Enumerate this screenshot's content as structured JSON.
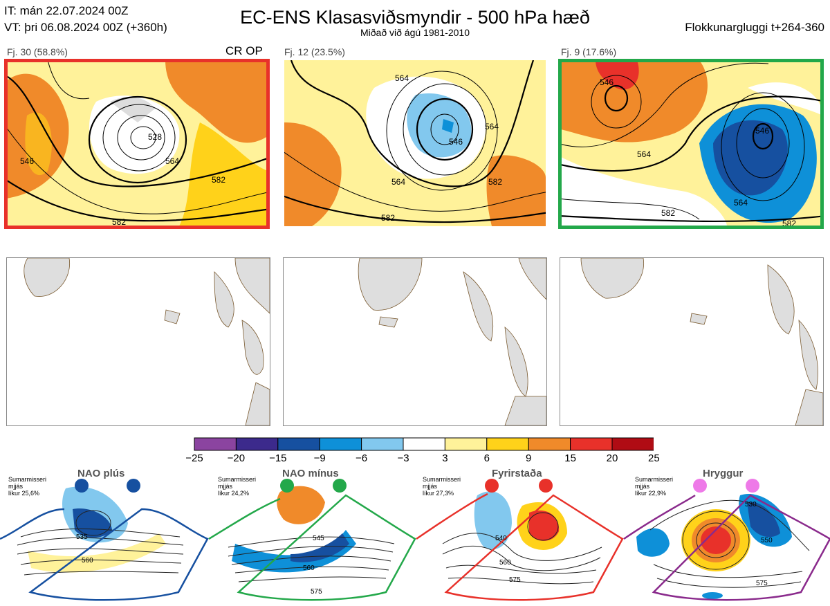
{
  "header": {
    "init": "IT: mán 22.07.2024 00Z",
    "valid": "VT: þri 06.08.2024 00Z  (+360h)",
    "title": "EC-ENS Klasasviðsmyndir - 500 hPa hæð",
    "subtitle": "Miðað við ágú 1981-2010",
    "window": "Flokkunargluggi t+264-360"
  },
  "clusters": [
    {
      "label": "Fj. 30 (58.8%)",
      "tag": "CR OP",
      "frame_color": "#e8312a",
      "contour_labels": [
        "546",
        "564",
        "582",
        "582",
        "528"
      ]
    },
    {
      "label": "Fj. 12 (23.5%)",
      "tag": "",
      "frame_color": "",
      "contour_labels": [
        "564",
        "564",
        "546",
        "564",
        "582",
        "582"
      ]
    },
    {
      "label": "Fj. 9 (17.6%)",
      "tag": "",
      "frame_color": "#23a84a",
      "contour_labels": [
        "546",
        "564",
        "546",
        "564",
        "582",
        "582"
      ]
    }
  ],
  "colorbar": {
    "ticks": [
      "−25",
      "−20",
      "−15",
      "−9",
      "−6",
      "−3",
      "3",
      "6",
      "9",
      "15",
      "20",
      "25"
    ],
    "colors": [
      "#8b44a0",
      "#3c2a8c",
      "#1650a0",
      "#0e90d8",
      "#82c8ee",
      "#ffffff",
      "#fff29a",
      "#ffd21a",
      "#f08a2a",
      "#e8312a",
      "#b00c14"
    ]
  },
  "regimes": [
    {
      "name": "NAO plús",
      "note": [
        "Sumarmisseri",
        "mjjás",
        "líkur 25,6%"
      ],
      "color": "#1650a0",
      "dot_color": "#1650a0",
      "contour_labels": [
        "535",
        "560"
      ]
    },
    {
      "name": "NAO mínus",
      "note": [
        "Sumarmisseri",
        "mjjás",
        "líkur 24,2%"
      ],
      "color": "#23a84a",
      "dot_color": "#23a84a",
      "contour_labels": [
        "545",
        "560",
        "575"
      ]
    },
    {
      "name": "Fyrirstaða",
      "note": [
        "Sumarmisseri",
        "mjjás",
        "líkur 27,3%"
      ],
      "color": "#e8312a",
      "dot_color": "#e8312a",
      "contour_labels": [
        "540",
        "560",
        "575"
      ]
    },
    {
      "name": "Hryggur",
      "note": [
        "Sumarmisseri",
        "mjjás",
        "líkur 22,9%"
      ],
      "color": "#8a2a8c",
      "dot_color": "#ee7ae8",
      "contour_labels": [
        "530",
        "550",
        "575"
      ]
    }
  ],
  "icons": {
    "land": "land-mass-icon",
    "dot": "regime-dot-icon"
  }
}
